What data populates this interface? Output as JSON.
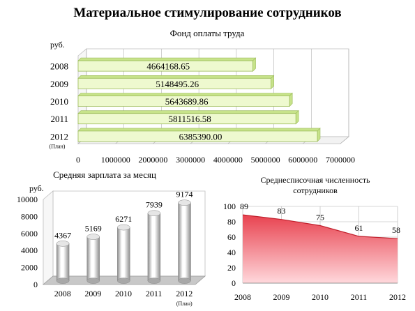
{
  "page": {
    "title": "Материальное стимулирование сотрудников"
  },
  "colors": {
    "bar_fill": "#eef9cf",
    "bar_edge": "#9bbb59",
    "bar_top": "#c7e38a",
    "cylinder_light": "#ffffff",
    "cylinder_dark": "#8c8c8c",
    "area_fill": "#e8424f",
    "area_line": "#c0202c",
    "grid": "#b0b0b0"
  },
  "chart_data": [
    {
      "id": "payroll",
      "type": "bar",
      "orientation": "horizontal",
      "title": "Фонд оплаты труда",
      "unit_label": "руб.",
      "categories": [
        "2008",
        "2009",
        "2010",
        "2011",
        "2012"
      ],
      "category_notes": [
        "",
        "",
        "",
        "",
        "(План)"
      ],
      "values": [
        4664168.65,
        5148495.26,
        5643689.86,
        5811516.58,
        6385390.0
      ],
      "value_labels": [
        "4664168.65",
        "5148495.26",
        "5643689.86",
        "5811516.58",
        "6385390.00"
      ],
      "xlim": [
        0,
        7000000
      ],
      "ticks": [
        "0",
        "1000000",
        "2000000",
        "3000000",
        "4000000",
        "5000000",
        "6000000",
        "7000000"
      ],
      "grid": true
    },
    {
      "id": "salary",
      "type": "bar",
      "style": "cylinder",
      "title": "Средняя зарплата за месяц",
      "unit_label": "руб.",
      "categories": [
        "2008",
        "2009",
        "2010",
        "2011",
        "2012"
      ],
      "category_notes": [
        "",
        "",
        "",
        "",
        "(План)"
      ],
      "values": [
        4367,
        5169,
        6271,
        7939,
        9174
      ],
      "value_labels": [
        "4367",
        "5169",
        "6271",
        "7939",
        "9174"
      ],
      "ylim": [
        0,
        10000
      ],
      "ticks": [
        "0",
        "2000",
        "4000",
        "6000",
        "8000",
        "10000"
      ],
      "grid": false
    },
    {
      "id": "headcount",
      "type": "area",
      "title": "Среднесписочная численность сотрудников",
      "x": [
        "2008",
        "2009",
        "2010",
        "2011",
        "2012"
      ],
      "values": [
        89,
        83,
        75,
        61,
        58
      ],
      "value_labels": [
        "89",
        "83",
        "75",
        "61",
        "58"
      ],
      "ylim": [
        0,
        100
      ],
      "ticks": [
        "0",
        "20",
        "40",
        "60",
        "80",
        "100"
      ],
      "grid": true
    }
  ]
}
